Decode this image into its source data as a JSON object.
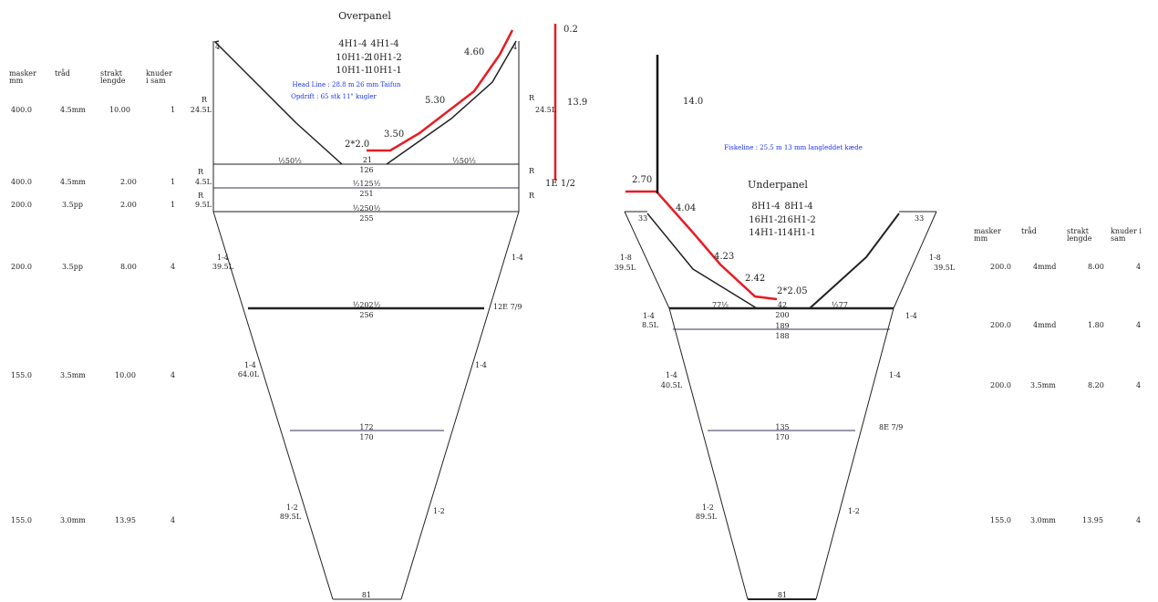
{
  "colors": {
    "line": "#222222",
    "rope": "#e81b22",
    "blue_text": "#1a33ff"
  },
  "overpanel": {
    "title": "Overpanel",
    "meshes": [
      "4H1-4",
      "4H1-4",
      "10H1-2",
      "10H1-2",
      "10H1-1",
      "10H1-1"
    ],
    "headline_note": "Head Line : 28.8 m 26 mm Taifun",
    "float_note": "Opdrift : 65 stk 11\" kugler",
    "rope_segments": [
      "4.60",
      "5.30",
      "3.50",
      "2*2.0"
    ],
    "vertical_top": "0.2",
    "vertical_len": "13.9",
    "vertical_bottom": "1E 1/2",
    "side_marks": [
      "4",
      "4",
      "R",
      "24.5L",
      "R",
      "24.5L",
      "R",
      "4.5L",
      "R",
      "R",
      "9.5L",
      "R",
      "1-4",
      "39.5L",
      "1-4",
      "12E 7/9",
      "1-4",
      "64.0L",
      "1-4",
      "1-2",
      "89.5L",
      "1-2"
    ],
    "section_counts": [
      "½50½",
      "21",
      "½50½",
      "126",
      "½125½",
      "251",
      "½250½",
      "255",
      "½202½",
      "256",
      "172",
      "170",
      "81"
    ],
    "spec_header": [
      "masker mm",
      "tråd",
      "strakt lengde",
      "knuder i sam"
    ],
    "spec_rows": [
      [
        "400.0",
        "4.5mm",
        "10.00",
        "1"
      ],
      [
        "400.0",
        "4.5mm",
        "2.00",
        "1"
      ],
      [
        "200.0",
        "3.5pp",
        "2.00",
        "1"
      ],
      [
        "200.0",
        "3.5pp",
        "8.00",
        "4"
      ],
      [
        "155.0",
        "3.5mm",
        "10.00",
        "4"
      ],
      [
        "155.0",
        "3.0mm",
        "13.95",
        "4"
      ]
    ]
  },
  "underpanel": {
    "title": "Underpanel",
    "meshes": [
      "8H1-4",
      "8H1-4",
      "16H1-2",
      "16H1-2",
      "14H1-1",
      "14H1-1"
    ],
    "footrope_note": "Fiskeline : 25.5 m 13 mm langleddet kæde",
    "vertical_len": "14.0",
    "rope_segments": [
      "2.70",
      "4.04",
      "4.23",
      "2.42",
      "2*2.05"
    ],
    "side_marks": [
      "33",
      "33",
      "1-8",
      "39.5L",
      "1-8",
      "39.5L",
      "1-4",
      "8.5L",
      "1-4",
      "1-4",
      "40.5L",
      "1-4",
      "8E 7/9",
      "1-2",
      "89.5L",
      "1-2"
    ],
    "section_counts": [
      "77½",
      "42",
      "½77",
      "200",
      "189",
      "188",
      "135",
      "170",
      "81"
    ],
    "spec_header": [
      "masker mm",
      "tråd",
      "strakt lengde",
      "knuder i sam"
    ],
    "spec_rows": [
      [
        "200.0",
        "4mmd",
        "8.00",
        "4"
      ],
      [
        "200.0",
        "4mmd",
        "1.80",
        "4"
      ],
      [
        "200.0",
        "3.5mm",
        "8.20",
        "4"
      ],
      [
        "155.0",
        "3.0mm",
        "13.95",
        "4"
      ]
    ]
  }
}
